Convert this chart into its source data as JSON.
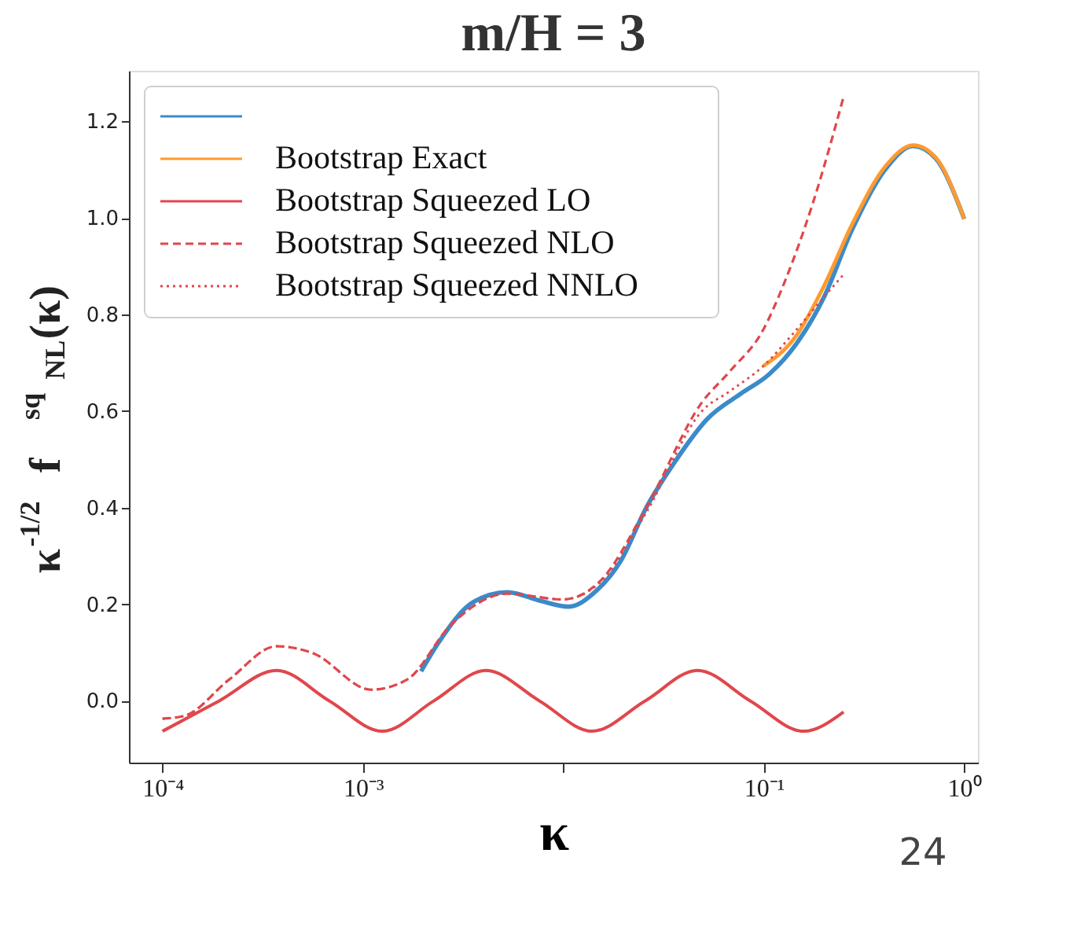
{
  "chart_data": {
    "type": "line",
    "title": "m/H = 3",
    "xlabel": "κ",
    "ylabel": "κ$^{-1/2}$ f$^{sq}$$_{NL}$(κ)",
    "log": "x",
    "grid": false,
    "legend": "top left",
    "xlim": [
      6.8e-05,
      1.17
    ],
    "ylim": [
      -0.128,
      1.305
    ],
    "xticks": [
      {
        "value": 0.0001,
        "label": "10⁻⁴"
      },
      {
        "value": 0.001,
        "label": "10⁻³"
      },
      {
        "value": 0.01,
        "label": null
      },
      {
        "value": 0.1,
        "label": "10⁻¹"
      },
      {
        "value": 1,
        "label": "10⁰"
      }
    ],
    "yticks": [
      {
        "value": 0,
        "label": "0.0"
      },
      0.2,
      0.4,
      0.6,
      0.8,
      {
        "value": 1,
        "label": "1.0"
      },
      1.2
    ],
    "annotations": [
      "24"
    ],
    "series": [
      {
        "color": "#3b8bc9",
        "line_style": "solid",
        "x": [
          0.00195,
          0.00236,
          0.00357,
          0.00525,
          0.00769,
          0.0106,
          0.0146,
          0.0194,
          0.0259,
          0.0356,
          0.0523,
          0.0767,
          0.106,
          0.145,
          0.2,
          0.275,
          0.404,
          0.556,
          0.718,
          1
        ],
        "values": [
          0.061,
          0.118,
          0.205,
          0.225,
          0.207,
          0.195,
          0.228,
          0.291,
          0.4,
          0.492,
          0.584,
          0.636,
          0.676,
          0.739,
          0.837,
          0.975,
          1.101,
          1.149,
          1.124,
          0.998
        ]
      },
      {
        "name": "Bootstrap Exact",
        "color": "#ff9a2e",
        "line_style": "solid",
        "x": [
          0.0991,
          0.145,
          0.2,
          0.275,
          0.404,
          0.556,
          0.718,
          1
        ],
        "values": [
          0.693,
          0.756,
          0.86,
          0.986,
          1.107,
          1.151,
          1.126,
          0.998
        ]
      },
      {
        "name": "Bootstrap Squeezed LO",
        "color": "#e0474c",
        "line_style": "solid",
        "x": [
          0.0001,
          0.000192,
          0.000371,
          0.000679,
          0.00125,
          0.00226,
          0.00411,
          0.00759,
          0.0139,
          0.0256,
          0.0467,
          0.0855,
          0.158,
          0.25
        ],
        "values": [
          -0.063,
          0,
          0.063,
          0,
          -0.063,
          0,
          0.063,
          0,
          -0.063,
          0,
          0.063,
          0,
          -0.063,
          -0.023
        ]
      },
      {
        "name": "Bootstrap Squeezed NLO",
        "color": "#e0474c",
        "line_style": "dashed",
        "x": [
          0.0001,
          0.000129,
          0.000215,
          0.000371,
          0.000561,
          0.0011,
          0.00166,
          0.00277,
          0.00525,
          0.00993,
          0.0155,
          0.0259,
          0.0491,
          0.0675,
          0.0991,
          0.128,
          0.176,
          0.25
        ],
        "values": [
          -0.037,
          -0.031,
          0.044,
          0.113,
          0.099,
          0.023,
          0.044,
          0.159,
          0.222,
          0.21,
          0.251,
          0.4,
          0.618,
          0.682,
          0.768,
          0.871,
          1.032,
          1.251
        ]
      },
      {
        "name": "Bootstrap Squeezed NNLO",
        "color": "#e0474c",
        "line_style": "dotted",
        "x": [
          0.0001,
          0.000129,
          0.000215,
          0.000371,
          0.000561,
          0.0011,
          0.00166,
          0.00277,
          0.00525,
          0.00993,
          0.0155,
          0.0259,
          0.0491,
          0.0675,
          0.0991,
          0.145,
          0.2,
          0.25
        ],
        "values": [
          -0.037,
          -0.031,
          0.044,
          0.113,
          0.099,
          0.023,
          0.044,
          0.159,
          0.222,
          0.21,
          0.248,
          0.39,
          0.6,
          0.641,
          0.693,
          0.768,
          0.837,
          0.883
        ]
      }
    ]
  }
}
